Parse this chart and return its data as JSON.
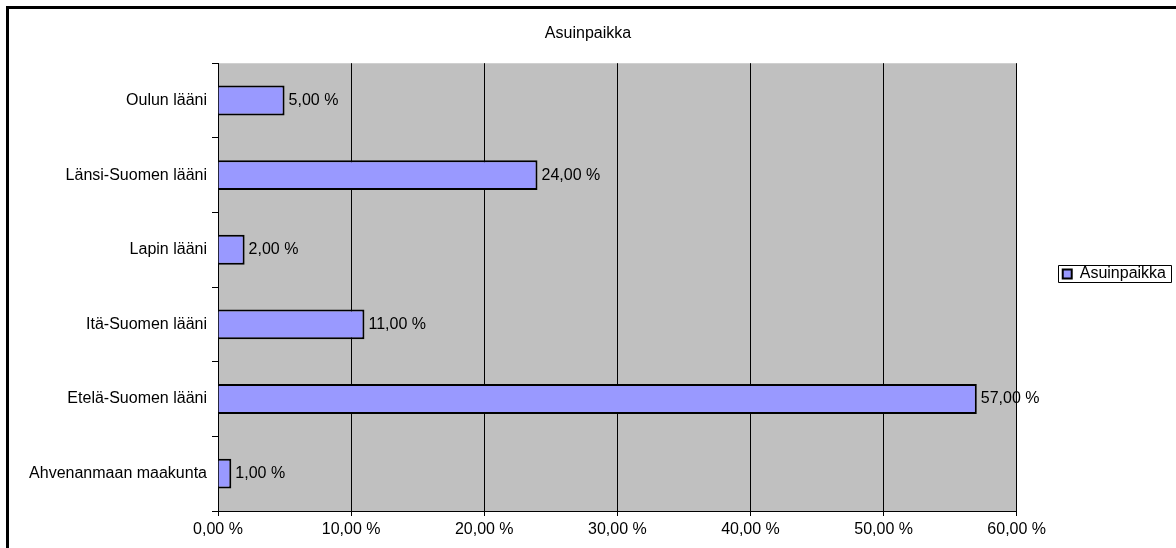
{
  "chart_data": {
    "type": "bar",
    "orientation": "horizontal",
    "title": "Asuinpaikka",
    "categories": [
      "Oulun lääni",
      "Länsi-Suomen lääni",
      "Lapin lääni",
      "Itä-Suomen lääni",
      "Etelä-Suomen lääni",
      "Ahvenanmaan maakunta"
    ],
    "series": [
      {
        "name": "Asuinpaikka",
        "color": "#9999ff",
        "values": [
          5,
          24,
          2,
          11,
          57,
          1
        ],
        "value_labels": [
          "5,00 %",
          "24,00 %",
          "2,00 %",
          "11,00 %",
          "57,00 %",
          "1,00 %"
        ]
      }
    ],
    "xlim": [
      0,
      60
    ],
    "xticks": [
      {
        "value": 0,
        "label": "0,00 %"
      },
      {
        "value": 10,
        "label": "10,00 %"
      },
      {
        "value": 20,
        "label": "20,00 %"
      },
      {
        "value": 30,
        "label": "30,00 %"
      },
      {
        "value": 40,
        "label": "40,00 %"
      },
      {
        "value": 50,
        "label": "50,00 %"
      },
      {
        "value": 60,
        "label": "60,00 %"
      }
    ],
    "grid": "x",
    "legend": "right"
  }
}
